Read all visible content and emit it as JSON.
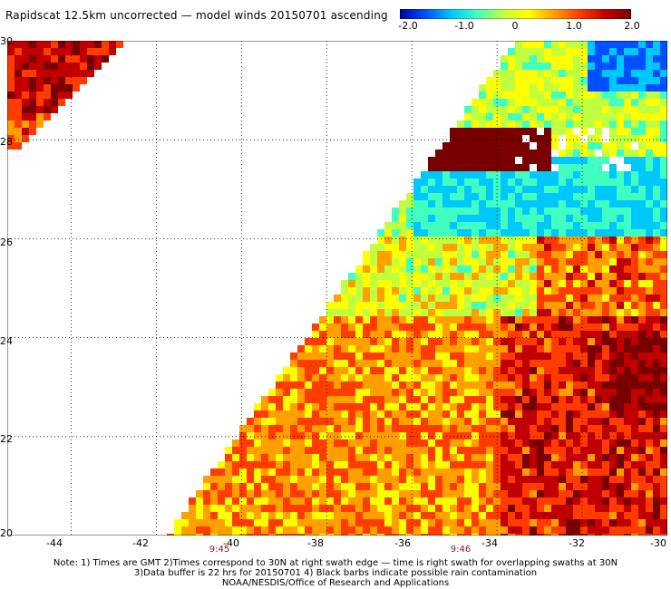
{
  "title": "Rapidscat 12.5km uncorrected — model winds 20150701 ascending",
  "colorbar": {
    "ticks": [
      "-2.0",
      "-1.0",
      "0",
      "1.0",
      "2.0"
    ],
    "colors": [
      "#0000a0",
      "#0050ff",
      "#00c8ff",
      "#40ffc0",
      "#c0ff40",
      "#ffff00",
      "#ffa000",
      "#ff3c00",
      "#c00000",
      "#780000"
    ]
  },
  "map": {
    "lat_range": [
      20,
      30
    ],
    "lon_range": [
      -45.5,
      -30
    ],
    "y_labels": [
      "30",
      "28",
      "26",
      "24",
      "22",
      "20"
    ],
    "x_labels": [
      "-44",
      "-42",
      "-40",
      "-38",
      "-36",
      "-34",
      "-32",
      "-30"
    ],
    "time_marks": [
      {
        "label": "9:45",
        "lon": -40
      },
      {
        "label": "9:46",
        "lon": -35
      }
    ]
  },
  "footer": {
    "line1": "Note: 1) Times are GMT 2)Times correspond to 30N at right swath edge — time is right swath for overlapping swaths at 30N",
    "line2": "3)Data buffer is 22 hrs for 20150701 4) Black barbs indicate possible rain contamination",
    "line3": "NOAA/NESDIS/Office of Research and Applications"
  }
}
